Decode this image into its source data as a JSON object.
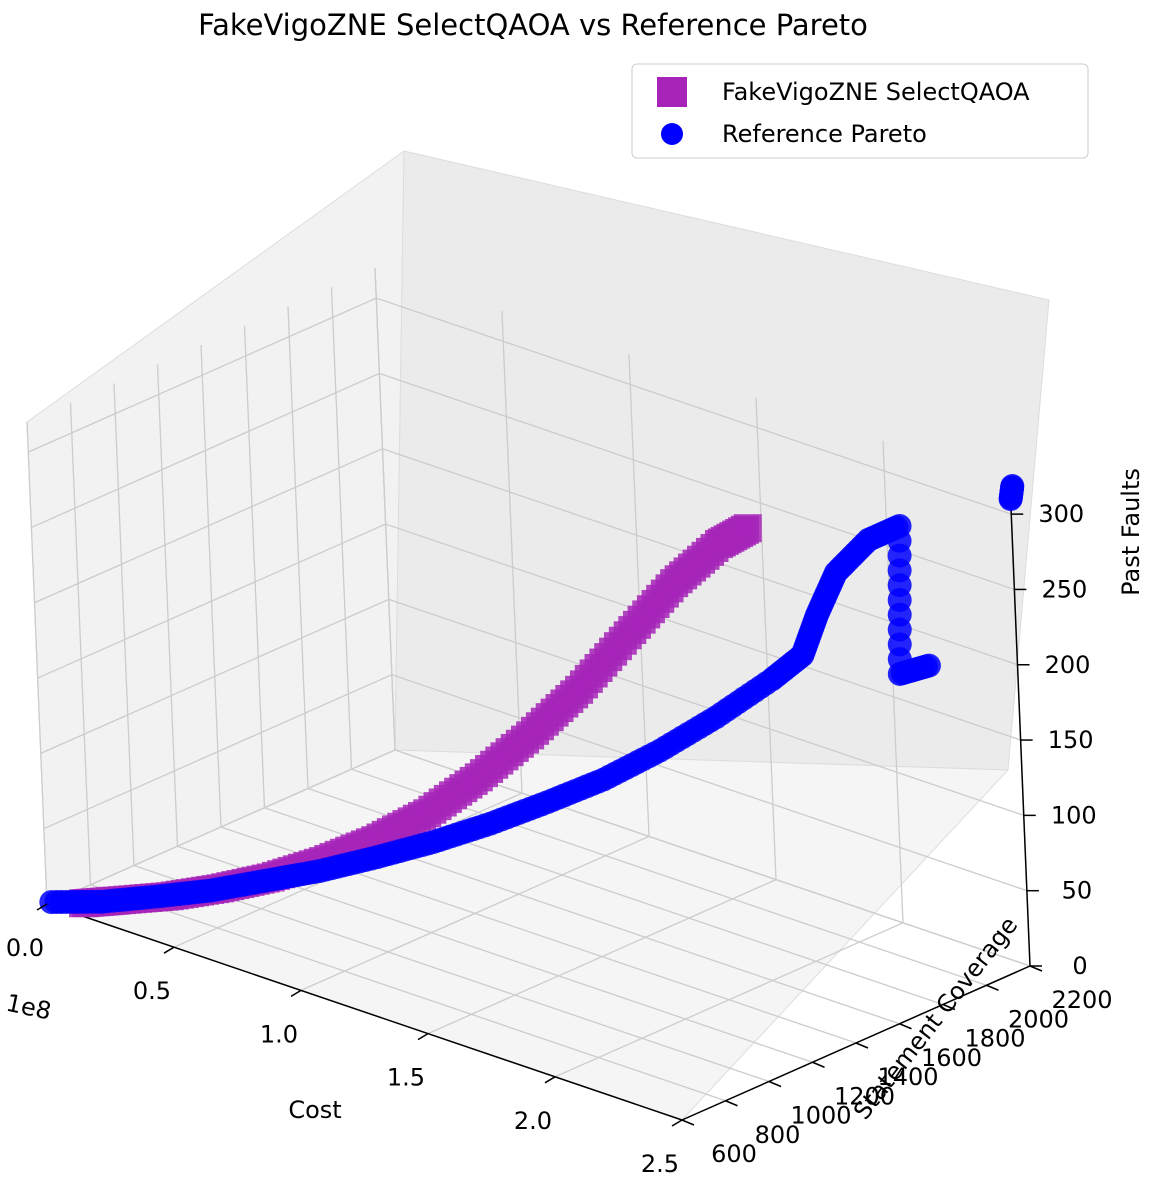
{
  "chart_data": {
    "type": "scatter",
    "projection": "3d",
    "title": "FakeVigoZNE SelectQAOA vs Reference Pareto",
    "xlabel": "Cost",
    "ylabel": "Statement Coverage",
    "zlabel": "Past Faults",
    "x_offset_label": "1e8",
    "xlim": [
      0.0,
      2.5
    ],
    "ylim": [
      600,
      2200
    ],
    "zlim": [
      0,
      320
    ],
    "x_ticks": [
      "0.0",
      "0.5",
      "1.0",
      "1.5",
      "2.0",
      "2.5"
    ],
    "y_ticks": [
      "600",
      "800",
      "1000",
      "1200",
      "1400",
      "1600",
      "1800",
      "2000",
      "2200"
    ],
    "z_ticks": [
      "0",
      "50",
      "100",
      "150",
      "200",
      "250",
      "300"
    ],
    "grid": true,
    "legend": {
      "location": "top-right",
      "entries": [
        {
          "label": "FakeVigoZNE SelectQAOA",
          "marker": "square",
          "color": "#a624b8"
        },
        {
          "label": "Reference Pareto",
          "marker": "circle",
          "color": "#0000ff"
        }
      ]
    },
    "series": [
      {
        "name": "FakeVigoZNE SelectQAOA",
        "marker": "square",
        "color": "#a624b8",
        "points": [
          [
            0.1,
            650,
            3
          ],
          [
            0.2,
            690,
            8
          ],
          [
            0.35,
            760,
            15
          ],
          [
            0.5,
            820,
            25
          ],
          [
            0.65,
            880,
            37
          ],
          [
            0.8,
            950,
            52
          ],
          [
            0.95,
            1020,
            70
          ],
          [
            1.1,
            1090,
            92
          ],
          [
            1.25,
            1160,
            120
          ],
          [
            1.4,
            1230,
            152
          ],
          [
            1.55,
            1290,
            187
          ],
          [
            1.7,
            1350,
            228
          ],
          [
            1.85,
            1400,
            268
          ],
          [
            2.0,
            1440,
            300
          ],
          [
            2.1,
            1460,
            315
          ]
        ]
      },
      {
        "name": "Reference Pareto",
        "marker": "circle",
        "color": "#0000ff",
        "points": [
          [
            0.0,
            620,
            0
          ],
          [
            0.15,
            680,
            5
          ],
          [
            0.3,
            760,
            12
          ],
          [
            0.45,
            830,
            20
          ],
          [
            0.6,
            910,
            30
          ],
          [
            0.75,
            990,
            40
          ],
          [
            0.9,
            1080,
            52
          ],
          [
            1.05,
            1170,
            65
          ],
          [
            1.2,
            1260,
            80
          ],
          [
            1.35,
            1350,
            97
          ],
          [
            1.5,
            1440,
            115
          ],
          [
            1.65,
            1530,
            137
          ],
          [
            1.8,
            1620,
            162
          ],
          [
            1.95,
            1710,
            190
          ],
          [
            2.05,
            1740,
            210
          ],
          [
            2.15,
            1700,
            245
          ],
          [
            2.25,
            1680,
            280
          ],
          [
            2.35,
            1720,
            305
          ],
          [
            2.45,
            1750,
            318
          ],
          [
            2.4,
            1780,
            215
          ],
          [
            2.5,
            1800,
            225
          ],
          [
            2.5,
            2200,
            310
          ],
          [
            2.5,
            2210,
            318
          ]
        ]
      }
    ]
  }
}
